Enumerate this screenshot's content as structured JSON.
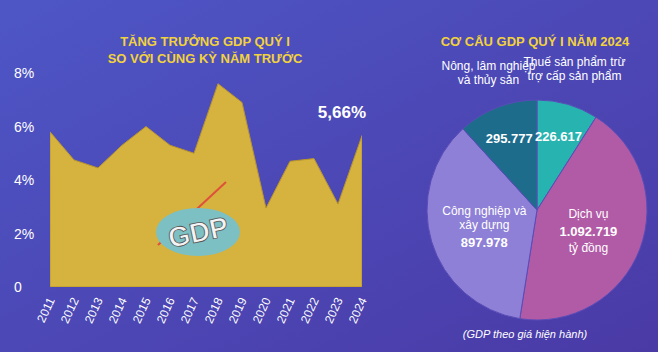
{
  "chart_data": [
    {
      "type": "area",
      "title": "TĂNG TRƯỞNG GDP QUÝ I",
      "subtitle": "SO VỚI CÙNG KỲ NĂM TRƯỚC",
      "categories": [
        "2011",
        "2012",
        "2013",
        "2014",
        "2015",
        "2016",
        "2017",
        "2018",
        "2019",
        "2020",
        "2021",
        "2022",
        "2023",
        "2024"
      ],
      "values": [
        5.8,
        4.75,
        4.45,
        5.3,
        6.0,
        5.3,
        5.0,
        7.6,
        6.9,
        2.95,
        4.7,
        4.8,
        3.1,
        5.66
      ],
      "color": "#d6b23e",
      "ylim": [
        0,
        8
      ],
      "yticks": [
        0,
        {
          "value": 2,
          "label": "2%"
        },
        {
          "value": 4,
          "label": "4%"
        },
        {
          "value": 6,
          "label": "6%"
        },
        {
          "value": 8,
          "label": "8%"
        }
      ],
      "grid": false,
      "annotations": [
        "5,66%",
        "GDP"
      ]
    },
    {
      "type": "pie",
      "title": "CƠ CẤU GDP QUÝ I NĂM 2024",
      "categories": [
        "Thuế sản phẩm trừ\ntrợ cấp sản phẩm",
        "Dịch vụ",
        "Công nghiệp và\nxây dựng",
        "Nông, lâm nghiệp\nvà thủy sản"
      ],
      "values": [
        226617,
        1092719,
        897978,
        295777
      ],
      "value_labels": [
        "226.617",
        "1.092.719",
        "897.978",
        "295.777"
      ],
      "colors": [
        "#27b3b0",
        "#b15aa6",
        "#8e80d6",
        "#1e6c8c"
      ],
      "data_labels": true,
      "unit": "tỷ đồng",
      "footnote": "(GDP theo giá hiện hành)"
    }
  ]
}
